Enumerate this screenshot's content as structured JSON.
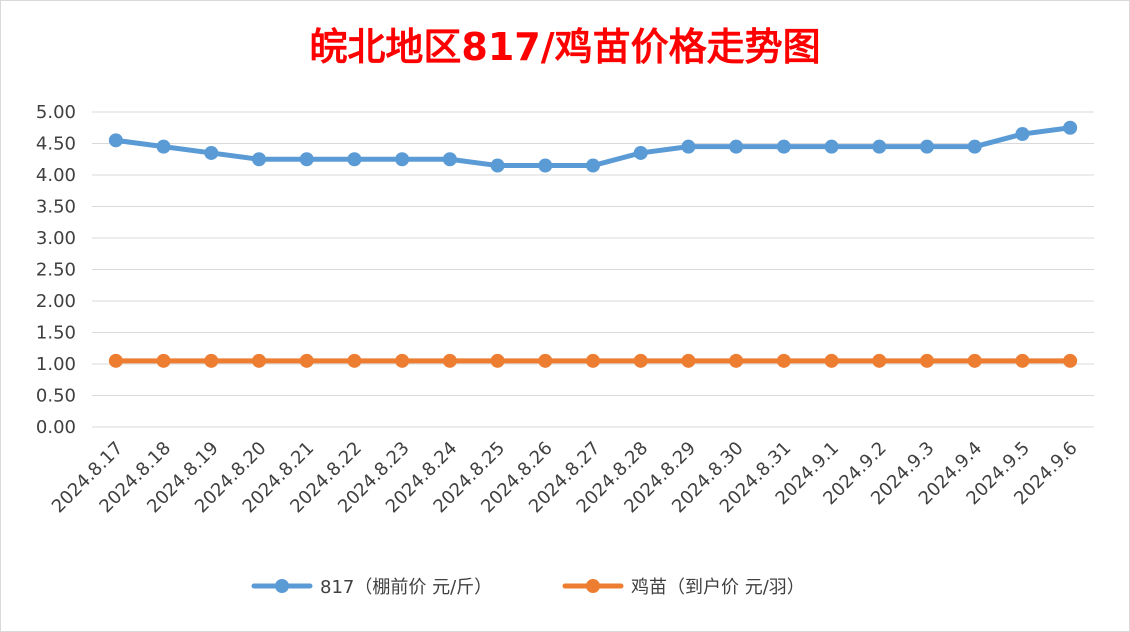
{
  "chart_data": {
    "type": "line",
    "title": "皖北地区817/鸡苗价格走势图",
    "xlabel": "",
    "ylabel": "",
    "ylim": [
      0,
      5
    ],
    "yticks": [
      "0.00",
      "0.50",
      "1.00",
      "1.50",
      "2.00",
      "2.50",
      "3.00",
      "3.50",
      "4.00",
      "4.50",
      "5.00"
    ],
    "grid": true,
    "legend_position": "bottom",
    "categories": [
      "2024.8.17",
      "2024.8.18",
      "2024.8.19",
      "2024.8.20",
      "2024.8.21",
      "2024.8.22",
      "2024.8.23",
      "2024.8.24",
      "2024.8.25",
      "2024.8.26",
      "2024.8.27",
      "2024.8.28",
      "2024.8.29",
      "2024.8.30",
      "2024.8.31",
      "2024.9.1",
      "2024.9.2",
      "2024.9.3",
      "2024.9.4",
      "2024.9.5",
      "2024.9.6"
    ],
    "series": [
      {
        "name": "817（棚前价 元/斤）",
        "color": "#5b9bd5",
        "values": [
          4.55,
          4.45,
          4.35,
          4.25,
          4.25,
          4.25,
          4.25,
          4.25,
          4.15,
          4.15,
          4.15,
          4.35,
          4.45,
          4.45,
          4.45,
          4.45,
          4.45,
          4.45,
          4.45,
          4.65,
          4.75
        ]
      },
      {
        "name": "鸡苗（到户价 元/羽）",
        "color": "#ed7d31",
        "values": [
          1.05,
          1.05,
          1.05,
          1.05,
          1.05,
          1.05,
          1.05,
          1.05,
          1.05,
          1.05,
          1.05,
          1.05,
          1.05,
          1.05,
          1.05,
          1.05,
          1.05,
          1.05,
          1.05,
          1.05,
          1.05
        ]
      }
    ]
  }
}
